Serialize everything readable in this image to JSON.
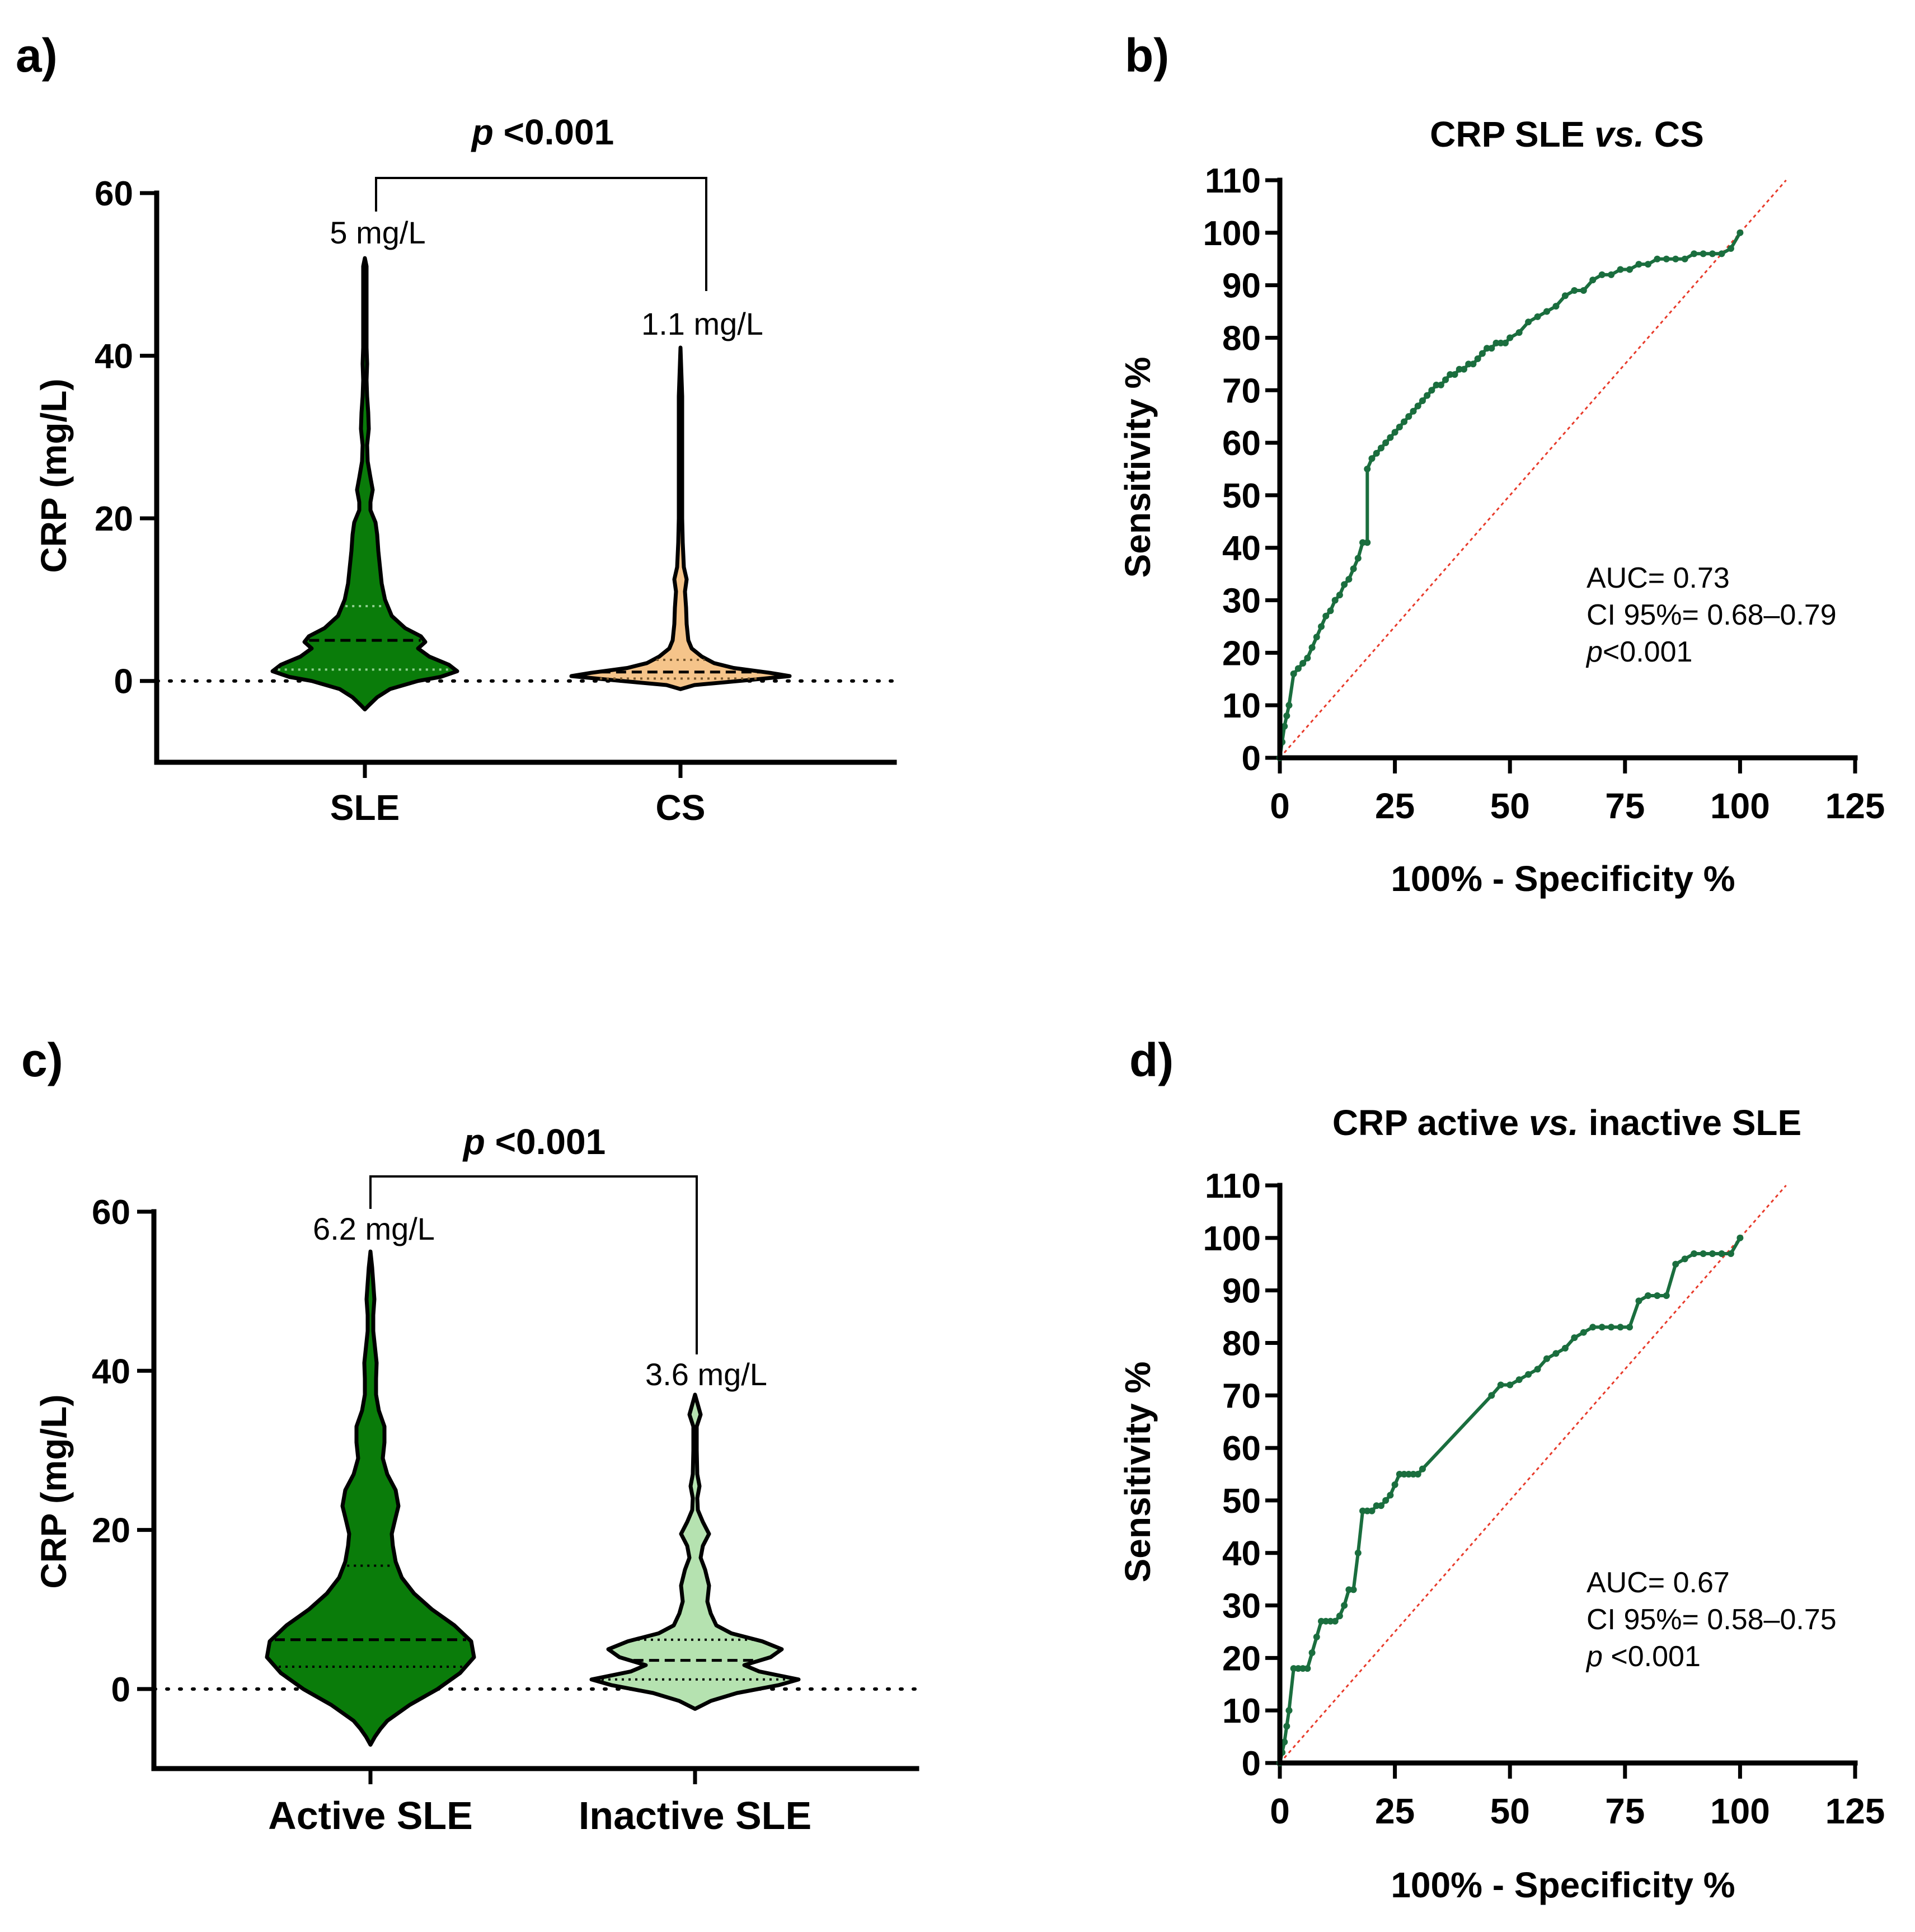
{
  "colors": {
    "sle_fill": "#0a7c0a",
    "cs_fill": "#f5c48a",
    "inactive_fill": "#b5e2b0",
    "roc_line": "#1a6e3e",
    "ref_line": "#e83a2a"
  },
  "chart_data": [
    {
      "panel": "a)",
      "type": "violin",
      "title": "",
      "xlabel": "",
      "ylabel": "CRP (mg/L)",
      "ylim": [
        -10,
        60
      ],
      "yticks": [
        0,
        20,
        40,
        60
      ],
      "categories": [
        "SLE",
        "CS"
      ],
      "medians": [
        5,
        1.1
      ],
      "median_labels": [
        "5 mg/L",
        "1.1 mg/L"
      ],
      "quartiles": [
        [
          1.4,
          9.2
        ],
        [
          0.3,
          2.6
        ]
      ],
      "ranges": [
        [
          -3.5,
          52
        ],
        [
          -1,
          41
        ]
      ],
      "reference_y": 0,
      "comparison": {
        "prefix": "p",
        "text": " <0.001"
      }
    },
    {
      "panel": "b)",
      "type": "line",
      "title": {
        "prefix": "CRP SLE ",
        "italic": "vs.",
        "suffix": " CS"
      },
      "xlabel": "100% - Specificity %",
      "ylabel": "Sensitivity %",
      "xlim": [
        0,
        125
      ],
      "ylim": [
        0,
        110
      ],
      "xticks": [
        0,
        25,
        50,
        75,
        100,
        125
      ],
      "yticks": [
        0,
        10,
        20,
        30,
        40,
        50,
        60,
        70,
        80,
        90,
        100,
        110
      ],
      "series": [
        {
          "name": "ROC",
          "x": [
            0,
            0.5,
            1,
            1.5,
            2,
            3,
            4,
            5,
            6,
            7,
            8,
            9,
            10,
            11,
            12,
            13,
            14,
            15,
            16,
            17,
            18,
            19,
            19,
            20,
            21,
            22,
            23,
            24,
            25,
            26,
            27,
            28,
            29,
            30,
            31,
            32,
            33,
            34,
            35,
            36,
            37,
            38,
            39,
            40,
            41,
            42,
            43,
            44,
            45,
            46,
            47,
            48,
            49,
            50,
            52,
            54,
            56,
            58,
            60,
            62,
            64,
            66,
            68,
            70,
            72,
            74,
            76,
            78,
            80,
            82,
            84,
            86,
            88,
            90,
            92,
            94,
            96,
            98,
            100
          ],
          "y": [
            0,
            3,
            6,
            8,
            10,
            16,
            17,
            18,
            19,
            21,
            23,
            25,
            27,
            28,
            30,
            31,
            33,
            34,
            36,
            38,
            41,
            41,
            55,
            57,
            58,
            59,
            60,
            61,
            62,
            63,
            64,
            65,
            66,
            67,
            68,
            69,
            70,
            71,
            71,
            72,
            73,
            73,
            74,
            74,
            75,
            75,
            76,
            77,
            78,
            78,
            79,
            79,
            79,
            80,
            81,
            83,
            84,
            85,
            86,
            88,
            89,
            89,
            91,
            92,
            92,
            93,
            93,
            94,
            94,
            95,
            95,
            95,
            95,
            96,
            96,
            96,
            96,
            97,
            100
          ]
        },
        {
          "name": "Reference",
          "x": [
            0,
            110
          ],
          "y": [
            0,
            110
          ]
        }
      ],
      "annotations": [
        "AUC= 0.73",
        "CI 95%= 0.68–0.79",
        {
          "prefix": "p",
          "text": "<0.001"
        }
      ]
    },
    {
      "panel": "c)",
      "type": "violin",
      "title": "",
      "xlabel": "",
      "ylabel": "CRP (mg/L)",
      "ylim": [
        -10,
        60
      ],
      "yticks": [
        0,
        20,
        40,
        60
      ],
      "categories": [
        "Active SLE",
        "Inactive SLE"
      ],
      "medians": [
        6.2,
        3.6
      ],
      "median_labels": [
        "6.2 mg/L",
        "3.6 mg/L"
      ],
      "quartiles": [
        [
          2.8,
          15.5
        ],
        [
          1.2,
          6.2
        ]
      ],
      "ranges": [
        [
          -7,
          55
        ],
        [
          -2.5,
          37
        ]
      ],
      "reference_y": 0,
      "comparison": {
        "prefix": "p",
        "text": " <0.001"
      }
    },
    {
      "panel": "d)",
      "type": "line",
      "title": {
        "prefix": "CRP active ",
        "italic": "vs.",
        "suffix": " inactive SLE"
      },
      "xlabel": "100% - Specificity %",
      "ylabel": "Sensitivity %",
      "xlim": [
        0,
        125
      ],
      "ylim": [
        0,
        110
      ],
      "xticks": [
        0,
        25,
        50,
        75,
        100,
        125
      ],
      "yticks": [
        0,
        10,
        20,
        30,
        40,
        50,
        60,
        70,
        80,
        90,
        100,
        110
      ],
      "series": [
        {
          "name": "ROC",
          "x": [
            0,
            0.5,
            1,
            1.5,
            2,
            2,
            3,
            4,
            5,
            6,
            7,
            8,
            9,
            10,
            11,
            12,
            13,
            14,
            15,
            16,
            17,
            18,
            19,
            20,
            21,
            22,
            23,
            24,
            25,
            26,
            27,
            28,
            29,
            30,
            31,
            46,
            48,
            50,
            52,
            54,
            56,
            58,
            60,
            62,
            64,
            66,
            68,
            70,
            72,
            74,
            76,
            78,
            80,
            82,
            84,
            86,
            88,
            90,
            92,
            94,
            96,
            98,
            100
          ],
          "y": [
            0,
            2,
            4,
            7,
            10,
            10,
            18,
            18,
            18,
            18,
            21,
            24,
            27,
            27,
            27,
            27,
            28,
            30,
            33,
            33,
            40,
            48,
            48,
            48,
            49,
            49,
            50,
            51,
            53,
            55,
            55,
            55,
            55,
            55,
            56,
            70,
            72,
            72,
            73,
            74,
            75,
            77,
            78,
            79,
            81,
            82,
            83,
            83,
            83,
            83,
            83,
            88,
            89,
            89,
            89,
            95,
            96,
            97,
            97,
            97,
            97,
            97,
            100
          ]
        },
        {
          "name": "Reference",
          "x": [
            0,
            110
          ],
          "y": [
            0,
            110
          ]
        }
      ],
      "annotations": [
        "AUC= 0.67",
        "CI 95%= 0.58–0.75",
        {
          "prefix": "p",
          "text": " <0.001"
        }
      ]
    }
  ]
}
